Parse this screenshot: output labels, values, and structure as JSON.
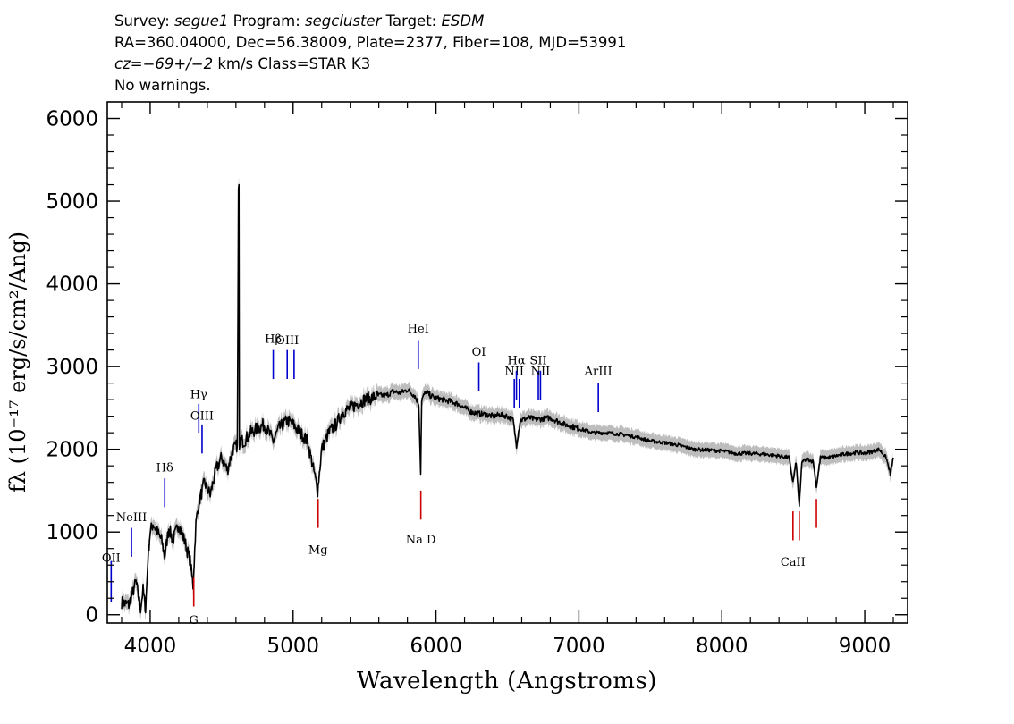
{
  "header": {
    "survey_label": "Survey:",
    "survey": "segue1",
    "program_label": "Program:",
    "program": "segcluster",
    "target_label": "Target:",
    "target": "ESDM",
    "line2": "RA=360.04000, Dec=56.38009, Plate=2377, Fiber=108, MJD=53991",
    "cz_label": "cz=",
    "cz_value": "−69+/−2",
    "cz_rest": " km/s Class=STAR K3",
    "warnings": "No warnings."
  },
  "chart_data": {
    "type": "line",
    "title": "Survey: segue1 Program: segcluster Target: ESDM",
    "xlabel": "Wavelength (Angstroms)",
    "ylabel": "fλ (10⁻¹⁷ erg/s/cm²/Ang)",
    "xlim": [
      3700,
      9300
    ],
    "ylim": [
      -100,
      6200
    ],
    "xticks": [
      4000,
      5000,
      6000,
      7000,
      8000,
      9000
    ],
    "xtick_labels": [
      "4000",
      "5000",
      "6000",
      "7000",
      "8000",
      "9000"
    ],
    "yticks": [
      0,
      1000,
      2000,
      3000,
      4000,
      5000,
      6000
    ],
    "ytick_labels": [
      "0",
      "1000",
      "2000",
      "3000",
      "4000",
      "5000",
      "6000"
    ],
    "series": [
      {
        "name": "flux",
        "color": "#000000",
        "x": [
          3800,
          3850,
          3880,
          3900,
          3920,
          3933,
          3950,
          3968,
          3985,
          4000,
          4020,
          4050,
          4080,
          4102,
          4130,
          4160,
          4200,
          4240,
          4280,
          4300,
          4320,
          4340,
          4380,
          4420,
          4460,
          4500,
          4540,
          4580,
          4610,
          4618,
          4621,
          4624,
          4632,
          4660,
          4700,
          4750,
          4800,
          4861,
          4900,
          4960,
          5000,
          5050,
          5100,
          5150,
          5172,
          5200,
          5250,
          5300,
          5350,
          5400,
          5450,
          5500,
          5550,
          5600,
          5650,
          5700,
          5750,
          5800,
          5850,
          5880,
          5893,
          5900,
          5930,
          5960,
          6000,
          6050,
          6100,
          6150,
          6200,
          6250,
          6300,
          6350,
          6400,
          6450,
          6500,
          6540,
          6563,
          6590,
          6650,
          6700,
          6800,
          6900,
          7000,
          7100,
          7200,
          7300,
          7400,
          7500,
          7600,
          7700,
          7800,
          7900,
          8000,
          8100,
          8200,
          8300,
          8400,
          8470,
          8498,
          8520,
          8542,
          8560,
          8600,
          8640,
          8662,
          8690,
          8750,
          8800,
          8850,
          8900,
          8950,
          9000,
          9050,
          9100,
          9150,
          9180,
          9200
        ],
        "values": [
          150,
          120,
          280,
          400,
          200,
          80,
          300,
          60,
          700,
          1000,
          1100,
          1000,
          900,
          700,
          1050,
          900,
          1100,
          900,
          650,
          350,
          1100,
          1350,
          1600,
          1450,
          1750,
          1900,
          1750,
          2000,
          2050,
          5150,
          5200,
          2000,
          2100,
          2100,
          2200,
          2250,
          2300,
          2100,
          2250,
          2350,
          2300,
          2200,
          2100,
          1700,
          1500,
          2000,
          2200,
          2300,
          2450,
          2500,
          2550,
          2600,
          2620,
          2650,
          2650,
          2700,
          2680,
          2720,
          2650,
          2550,
          1700,
          2600,
          2700,
          2650,
          2620,
          2600,
          2580,
          2550,
          2500,
          2450,
          2430,
          2420,
          2400,
          2420,
          2400,
          2350,
          2050,
          2350,
          2380,
          2360,
          2380,
          2300,
          2250,
          2200,
          2200,
          2180,
          2150,
          2100,
          2080,
          2050,
          2000,
          1990,
          1980,
          1950,
          1950,
          1940,
          1920,
          1900,
          1600,
          1850,
          1300,
          1850,
          1880,
          1850,
          1550,
          1900,
          1900,
          1920,
          1940,
          1950,
          1960,
          1950,
          1970,
          2000,
          1900,
          1700,
          1900
        ]
      }
    ],
    "emission_lines": [
      {
        "label": "OII",
        "x": 3727,
        "y1": 150,
        "y2": 650,
        "label_y": 640,
        "color": "#0000cc"
      },
      {
        "label": "NeIII",
        "x": 3869,
        "y1": 700,
        "y2": 1050,
        "label_y": 1130,
        "color": "#0000cc"
      },
      {
        "label": "Hδ",
        "x": 4102,
        "y1": 1300,
        "y2": 1650,
        "label_y": 1730,
        "color": "#0000cc"
      },
      {
        "label": "Hγ",
        "x": 4340,
        "y1": 2200,
        "y2": 2550,
        "label_y": 2620,
        "color": "#0000cc"
      },
      {
        "label": "OIII",
        "x": 4363,
        "y1": 1950,
        "y2": 2300,
        "label_y": 2360,
        "color": "#0000cc"
      },
      {
        "label": "Hβ",
        "x": 4861,
        "y1": 2850,
        "y2": 3200,
        "label_y": 3290,
        "color": "#0000cc"
      },
      {
        "label": "OIII",
        "x": 4959,
        "y1": 2850,
        "y2": 3200,
        "label_y": 3270,
        "color": "#0000cc"
      },
      {
        "label": "",
        "x": 5007,
        "y1": 2850,
        "y2": 3200,
        "label_y": 0,
        "color": "#0000cc"
      },
      {
        "label": "HeI",
        "x": 5876,
        "y1": 2970,
        "y2": 3320,
        "label_y": 3410,
        "color": "#0000cc"
      },
      {
        "label": "OI",
        "x": 6300,
        "y1": 2700,
        "y2": 3050,
        "label_y": 3130,
        "color": "#0000cc"
      },
      {
        "label": "NII",
        "x": 6548,
        "y1": 2500,
        "y2": 2850,
        "label_y": 2900,
        "color": "#0000cc"
      },
      {
        "label": "Hα",
        "x": 6563,
        "y1": 2600,
        "y2": 2950,
        "label_y": 3030,
        "color": "#0000cc"
      },
      {
        "label": "",
        "x": 6583,
        "y1": 2500,
        "y2": 2850,
        "label_y": 0,
        "color": "#0000cc"
      },
      {
        "label": "SII",
        "x": 6716,
        "y1": 2600,
        "y2": 2950,
        "label_y": 3030,
        "color": "#0000cc"
      },
      {
        "label": "NII",
        "x": 6731,
        "y1": 2600,
        "y2": 2950,
        "label_y": 2900,
        "color": "#0000cc"
      },
      {
        "label": "ArIII",
        "x": 7136,
        "y1": 2450,
        "y2": 2800,
        "label_y": 2900,
        "color": "#0000cc"
      }
    ],
    "absorption_lines": [
      {
        "label": "G",
        "x": 4305,
        "y1": 100,
        "y2": 450,
        "label_y": -110,
        "color": "#cc0000"
      },
      {
        "label": "Mg",
        "x": 5175,
        "y1": 1050,
        "y2": 1400,
        "label_y": 740,
        "color": "#cc0000"
      },
      {
        "label": "Na D",
        "x": 5894,
        "y1": 1150,
        "y2": 1500,
        "label_y": 860,
        "color": "#cc0000"
      },
      {
        "label": "CaII",
        "x": 8498,
        "y1": 900,
        "y2": 1250,
        "label_y": 590,
        "color": "#cc0000"
      },
      {
        "label": "",
        "x": 8542,
        "y1": 900,
        "y2": 1250,
        "label_y": 0,
        "color": "#cc0000"
      },
      {
        "label": "",
        "x": 8662,
        "y1": 1050,
        "y2": 1400,
        "label_y": 0,
        "color": "#cc0000"
      }
    ]
  }
}
